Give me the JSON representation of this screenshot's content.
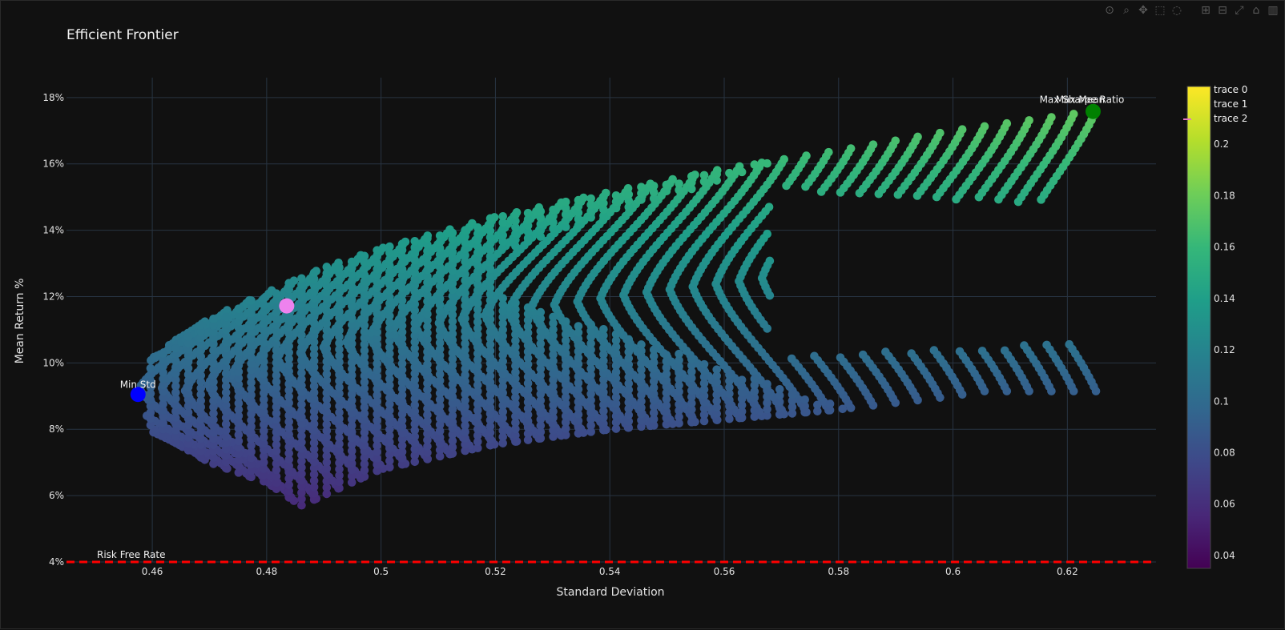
{
  "modebar": [
    {
      "icon": "camera-icon",
      "glyph": "⊙"
    },
    {
      "icon": "zoom-icon",
      "glyph": "⌕"
    },
    {
      "icon": "pan-icon",
      "glyph": "✥"
    },
    {
      "icon": "box-select-icon",
      "glyph": "⬚"
    },
    {
      "icon": "lasso-icon",
      "glyph": "◌"
    },
    {
      "icon": "zoom-in-icon",
      "glyph": "⊞"
    },
    {
      "icon": "zoom-out-icon",
      "glyph": "⊟"
    },
    {
      "icon": "autoscale-icon",
      "glyph": "⤢"
    },
    {
      "icon": "reset-axes-icon",
      "glyph": "⌂"
    },
    {
      "icon": "plotly-logo-icon",
      "glyph": "▥"
    }
  ],
  "colors": {
    "background": "#111111",
    "grid": "#283442",
    "risk_free_line": "#ff0000",
    "min_std_marker": "#0000ff",
    "max_sharpe_marker": "#008000",
    "highlight_marker": "#ee82ee",
    "viridis": [
      "#440154",
      "#482878",
      "#3e4989",
      "#31688e",
      "#26828e",
      "#1f9e89",
      "#35b779",
      "#6ece58",
      "#b5de2b",
      "#fde725"
    ]
  },
  "chart_data": {
    "type": "scatter",
    "title": "Efficient Frontier",
    "xlabel": "Standard Deviation",
    "ylabel": "Mean Return %",
    "xlim": [
      0.445,
      0.6355
    ],
    "ylim": [
      0.04,
      0.186
    ],
    "xticks": [
      0.46,
      0.48,
      0.5,
      0.52,
      0.54,
      0.56,
      0.58,
      0.6,
      0.62
    ],
    "xtick_labels": [
      "0.46",
      "0.48",
      "0.5",
      "0.52",
      "0.54",
      "0.56",
      "0.58",
      "0.6",
      "0.62"
    ],
    "yticks": [
      0.04,
      0.06,
      0.08,
      0.1,
      0.12,
      0.14,
      0.16,
      0.18
    ],
    "ytick_labels": [
      "4%",
      "6%",
      "8%",
      "10%",
      "12%",
      "14%",
      "16%",
      "18%"
    ],
    "grid": true,
    "legend_position": "top-right",
    "colorscale": "Viridis",
    "colorbar": {
      "range": [
        0.035,
        0.2225
      ],
      "ticks": [
        0.04,
        0.06,
        0.08,
        0.1,
        0.12,
        0.14,
        0.16,
        0.18,
        0.2
      ],
      "tick_labels": [
        "0.04",
        "0.06",
        "0.08",
        "0.1",
        "0.12",
        "0.14",
        "0.16",
        "0.18",
        "0.2"
      ]
    },
    "legend": [
      "trace 0",
      "trace 1",
      "trace 2"
    ],
    "frontier_envelope": {
      "min_std_vertex": [
        0.4575,
        0.0905
      ],
      "upper_edge": [
        [
          0.4575,
          0.0905
        ],
        [
          0.46,
          0.1008
        ],
        [
          0.47,
          0.1135
        ],
        [
          0.48,
          0.1212
        ],
        [
          0.49,
          0.1287
        ],
        [
          0.5,
          0.1345
        ],
        [
          0.52,
          0.144
        ],
        [
          0.54,
          0.1515
        ],
        [
          0.56,
          0.1585
        ],
        [
          0.58,
          0.164
        ],
        [
          0.6,
          0.17
        ],
        [
          0.615,
          0.1735
        ],
        [
          0.625,
          0.176
        ]
      ],
      "lower_edge": [
        [
          0.4575,
          0.0905
        ],
        [
          0.46,
          0.08
        ],
        [
          0.47,
          0.07
        ],
        [
          0.48,
          0.064
        ],
        [
          0.486,
          0.057
        ],
        [
          0.5,
          0.068
        ],
        [
          0.52,
          0.0755
        ],
        [
          0.54,
          0.08
        ],
        [
          0.56,
          0.083
        ],
        [
          0.58,
          0.086
        ],
        [
          0.6,
          0.09
        ],
        [
          0.605,
          0.0915
        ]
      ],
      "inner_cusp": [
        0.573,
        0.127
      ],
      "return_range": [
        0.057,
        0.176
      ]
    },
    "markers": [
      {
        "label": "Min Std",
        "x": 0.4575,
        "y": 0.0905
      },
      {
        "label": "Max Sharpe Ratio",
        "x": 0.6245,
        "y": 0.1758
      },
      {
        "label": "Max Mean",
        "x": 0.6245,
        "y": 0.1758
      },
      {
        "label": "",
        "x": 0.4835,
        "y": 0.1172
      }
    ],
    "risk_free_rate": {
      "label": "Risk Free Rate",
      "y": 0.04
    }
  }
}
